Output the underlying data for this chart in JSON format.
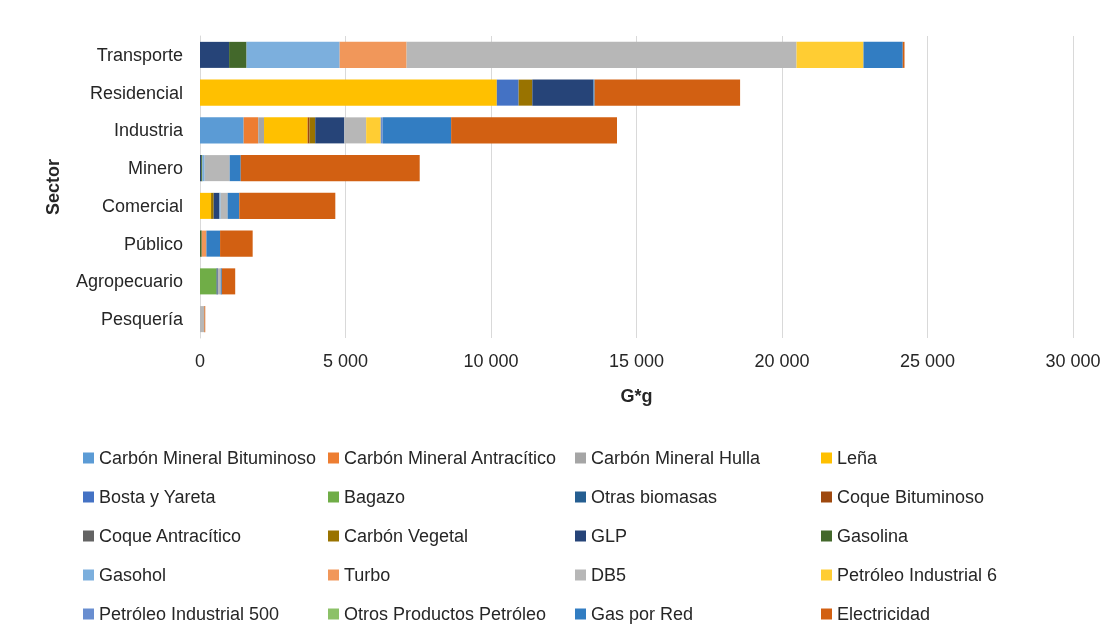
{
  "chart_data": {
    "type": "bar",
    "orientation": "horizontal",
    "stacked": true,
    "xlabel": "G*g",
    "ylabel": "Sector",
    "categories": [
      "Transporte",
      "Residencial",
      "Industria",
      "Minero",
      "Comercial",
      "Público",
      "Agropecuario",
      "Pesquería"
    ],
    "series": [
      {
        "name": "Carbón Mineral Bituminoso",
        "color": "#5b9bd5",
        "values": [
          null,
          null,
          1500,
          null,
          null,
          null,
          null,
          null
        ]
      },
      {
        "name": "Carbón Mineral Antracítico",
        "color": "#ed7d31",
        "values": [
          null,
          null,
          500,
          null,
          null,
          null,
          null,
          null
        ]
      },
      {
        "name": "Carbón Mineral Hulla",
        "color": "#a5a5a5",
        "values": [
          null,
          null,
          200,
          null,
          null,
          null,
          null,
          null
        ]
      },
      {
        "name": "Leña",
        "color": "#ffc000",
        "values": [
          null,
          10200,
          1500,
          null,
          380,
          null,
          null,
          null
        ]
      },
      {
        "name": "Bosta y Yareta",
        "color": "#4472c4",
        "values": [
          null,
          750,
          null,
          null,
          null,
          null,
          null,
          null
        ]
      },
      {
        "name": "Bagazo",
        "color": "#70ad47",
        "values": [
          null,
          null,
          null,
          null,
          null,
          null,
          570,
          null
        ]
      },
      {
        "name": "Otras biomasas",
        "color": "#255e91",
        "values": [
          null,
          null,
          null,
          null,
          null,
          null,
          null,
          null
        ]
      },
      {
        "name": "Coque Bituminoso",
        "color": "#9e480e",
        "values": [
          null,
          null,
          60,
          null,
          null,
          null,
          null,
          null
        ]
      },
      {
        "name": "Coque Antracítico",
        "color": "#636363",
        "values": [
          null,
          null,
          null,
          null,
          null,
          null,
          null,
          null
        ]
      },
      {
        "name": "Carbón Vegetal",
        "color": "#997300",
        "values": [
          null,
          470,
          200,
          null,
          90,
          null,
          null,
          null
        ]
      },
      {
        "name": "GLP",
        "color": "#264478",
        "values": [
          1000,
          2100,
          1000,
          40,
          200,
          null,
          40,
          null
        ]
      },
      {
        "name": "Gasolina",
        "color": "#43682b",
        "values": [
          600,
          null,
          null,
          40,
          null,
          60,
          null,
          null
        ]
      },
      {
        "name": "Gasohol",
        "color": "#7cafdd",
        "values": [
          3200,
          null,
          null,
          80,
          40,
          null,
          null,
          null
        ]
      },
      {
        "name": "Turbo",
        "color": "#f1975a",
        "values": [
          2300,
          null,
          null,
          null,
          null,
          160,
          null,
          null
        ]
      },
      {
        "name": "DB5",
        "color": "#b7b7b7",
        "values": [
          13400,
          null,
          750,
          860,
          240,
          null,
          100,
          150
        ]
      },
      {
        "name": "Petróleo Industrial 6",
        "color": "#ffcd33",
        "values": [
          2300,
          null,
          500,
          null,
          null,
          null,
          null,
          null
        ]
      },
      {
        "name": "Petróleo Industrial 500",
        "color": "#698ed0",
        "values": [
          null,
          null,
          70,
          null,
          null,
          null,
          null,
          null
        ]
      },
      {
        "name": "Otros Productos Petróleo",
        "color": "#8cc168",
        "values": [
          null,
          null,
          null,
          null,
          null,
          null,
          null,
          null
        ]
      },
      {
        "name": "Gas por Red",
        "color": "#327dc2",
        "values": [
          1350,
          40,
          2350,
          380,
          400,
          470,
          40,
          null
        ]
      },
      {
        "name": "Electricidad",
        "color": "#d26012",
        "values": [
          60,
          5000,
          5700,
          6150,
          3300,
          1120,
          460,
          30
        ]
      }
    ],
    "xlim": [
      0,
      30000
    ],
    "xticks": [
      0,
      {
        "value": 5000,
        "label": "5 000"
      },
      {
        "value": 10000,
        "label": "10 000"
      },
      {
        "value": 15000,
        "label": "15 000"
      },
      {
        "value": 20000,
        "label": "20 000"
      },
      {
        "value": 25000,
        "label": "25 000"
      },
      {
        "value": 30000,
        "label": "30 000"
      }
    ],
    "grid": "x",
    "legend": "bottom"
  }
}
